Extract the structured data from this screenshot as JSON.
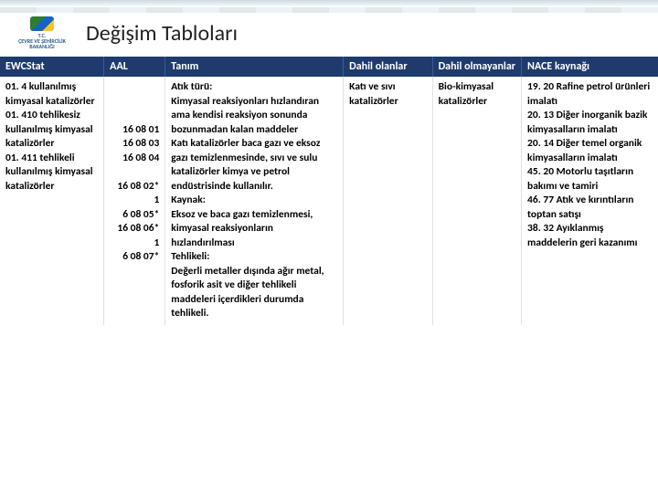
{
  "header": {
    "logo_line1": "T.C.",
    "logo_line2": "ÇEVRE VE ŞEHİRCİLİK",
    "logo_line3": "BAKANLIĞI",
    "title": "Değişim Tabloları"
  },
  "table": {
    "columns": {
      "ewc": "EWCStat",
      "aal": "AAL",
      "definition": "Tanım",
      "included": "Dahil olanlar",
      "excluded": "Dahil olmayanlar",
      "nace": "NACE kaynağı"
    },
    "row": {
      "ewc": "01. 4 kullanılmış kimyasal katalizörler\n01. 410 tehlikesiz kullanılmış kimyasal katalizörler\n01. 411 tehlikeli kullanılmış kimyasal katalizörler",
      "aal": "\n\n\n16 08 01\n16 08 03\n16 08 04\n\n16 08 02*\n1\n6 08 05*\n16 08 06*\n1\n6 08 07*",
      "definition": "Atık türü:\nKimyasal reaksiyonları hızlandıran ama kendisi reaksiyon sonunda bozunmadan kalan maddeler\nKatı katalizörler baca gazı ve eksoz gazı temizlenmesinde, sıvı ve sulu katalizörler kimya ve petrol endüstrisinde kullanılır.\nKaynak:\nEksoz ve baca gazı temizlenmesi, kimyasal reaksiyonların hızlandırılması\nTehlikeli:\nDeğerli metaller dışında ağır metal, fosforik asit ve diğer tehlikeli maddeleri içerdikleri durumda tehlikeli.",
      "included": "Katı ve sıvı katalizörler",
      "excluded": "Bio-kimyasal katalizörler",
      "nace": "19. 20 Rafine petrol ürünleri imalatı\n20. 13 Diğer inorganik bazik kimyasalların imalatı\n20. 14 Diğer temel organik kimyasalların imalatı\n45. 20 Motorlu taşıtların bakımı ve tamiri\n46. 77 Atık ve kırıntıların toptan satışı\n38. 32 Ayıklanmış maddelerin geri kazanımı"
    }
  }
}
